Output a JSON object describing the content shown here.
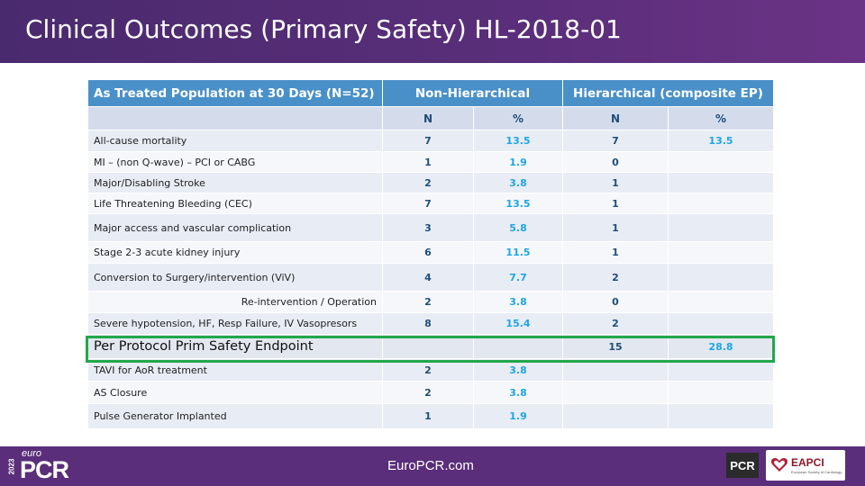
{
  "slide": {
    "title": "Clinical Outcomes (Primary Safety) HL-2018-01"
  },
  "table": {
    "headers": {
      "population": "As Treated Population at 30 Days (N=52)",
      "non_hierarchical": "Non-Hierarchical",
      "hierarchical": "Hierarchical (composite EP)"
    },
    "subheaders": {
      "n1": "N",
      "p1": "%",
      "n2": "N",
      "p2": "%"
    },
    "rows": [
      {
        "label": "All-cause mortality",
        "nh_n": "7",
        "nh_pct": "13.5",
        "h_n": "7",
        "h_pct": "13.5"
      },
      {
        "label": "MI – (non Q-wave) – PCI or CABG",
        "nh_n": "1",
        "nh_pct": "1.9",
        "h_n": "0",
        "h_pct": ""
      },
      {
        "label": "Major/Disabling Stroke",
        "nh_n": "2",
        "nh_pct": "3.8",
        "h_n": "1",
        "h_pct": ""
      },
      {
        "label": "Life Threatening Bleeding (CEC)",
        "nh_n": "7",
        "nh_pct": "13.5",
        "h_n": "1",
        "h_pct": ""
      },
      {
        "label": "Major access and vascular complication",
        "nh_n": "3",
        "nh_pct": "5.8",
        "h_n": "1",
        "h_pct": ""
      },
      {
        "label": "Stage 2-3 acute kidney injury",
        "nh_n": "6",
        "nh_pct": "11.5",
        "h_n": "1",
        "h_pct": ""
      },
      {
        "label": "Conversion to Surgery/intervention (ViV)",
        "nh_n": "4",
        "nh_pct": "7.7",
        "h_n": "2",
        "h_pct": ""
      },
      {
        "label": "Re-intervention / Operation",
        "nh_n": "2",
        "nh_pct": "3.8",
        "h_n": "0",
        "h_pct": ""
      },
      {
        "label": "Severe hypotension, HF, Resp Failure, IV Vasopresors",
        "nh_n": "8",
        "nh_pct": "15.4",
        "h_n": "2",
        "h_pct": ""
      },
      {
        "label": "Per Protocol Prim Safety Endpoint",
        "nh_n": "",
        "nh_pct": "",
        "h_n": "15",
        "h_pct": "28.8"
      },
      {
        "label": "TAVI for AoR treatment",
        "nh_n": "2",
        "nh_pct": "3.8",
        "h_n": "",
        "h_pct": ""
      },
      {
        "label": "AS Closure",
        "nh_n": "2",
        "nh_pct": "3.8",
        "h_n": "",
        "h_pct": ""
      },
      {
        "label": "Pulse Generator Implanted",
        "nh_n": "1",
        "nh_pct": "1.9",
        "h_n": "",
        "h_pct": ""
      }
    ]
  },
  "footer": {
    "year": "2023",
    "brand_prefix": "euro",
    "brand_main": "PCR",
    "url": "EuroPCR.com",
    "pcr_badge": "PCR",
    "eapci_label": "EAPCI",
    "eapci_sub": "European Society of Cardiology"
  },
  "colors": {
    "header_bg": "#5a2e7a",
    "table_header": "#4a90c8",
    "pct_text": "#1ea6e0",
    "n_text": "#1f4e79",
    "highlight_border": "#21a84a"
  },
  "icons": {
    "eapci_logo": "heart-icon"
  }
}
